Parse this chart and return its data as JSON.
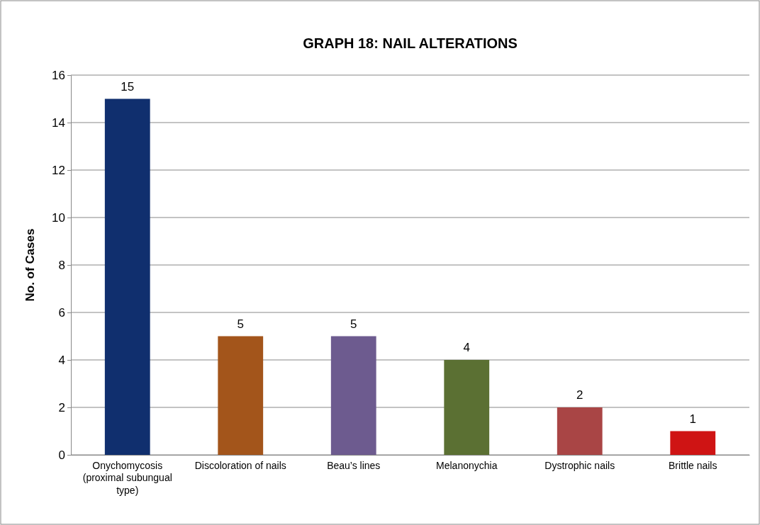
{
  "chart_data": {
    "type": "bar",
    "title": "GRAPH 18: NAIL ALTERATIONS",
    "ylabel": "No. of Cases",
    "categories": [
      "Onychomycosis (proximal subungual type)",
      "Discoloration of nails",
      "Beau’s lines",
      "Melanonychia",
      "Dystrophic nails",
      "Brittle nails"
    ],
    "values": [
      15,
      5,
      5,
      4,
      2,
      1
    ],
    "colors": [
      "#102f6e",
      "#a3551b",
      "#6d5b8f",
      "#5b7033",
      "#a94545",
      "#cf1414"
    ],
    "ylim": [
      0,
      16
    ],
    "yticks": [
      0,
      2,
      4,
      6,
      8,
      10,
      12,
      14,
      16
    ],
    "grid": "y",
    "data_labels": true
  }
}
